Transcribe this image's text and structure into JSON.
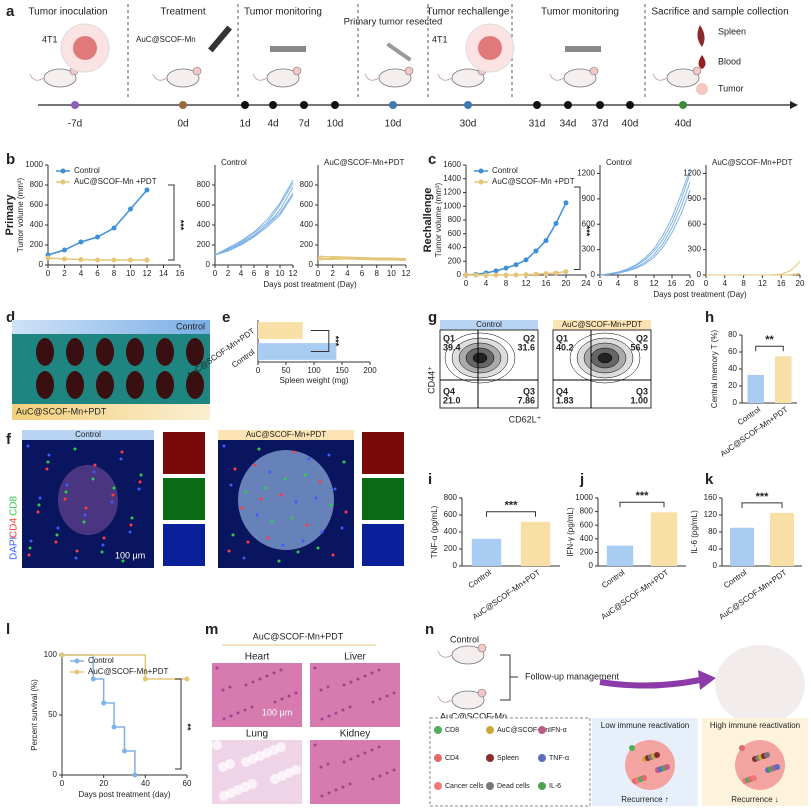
{
  "panel_letters": [
    "a",
    "b",
    "c",
    "d",
    "e",
    "f",
    "g",
    "h",
    "i",
    "j",
    "k",
    "l",
    "m",
    "n"
  ],
  "timeline": {
    "stages": [
      "Tumor inoculation",
      "Treatment",
      "Tumor monitoring",
      "Primary tumor resected",
      "Tumor rechallenge",
      "Tumor monitoring",
      "Sacrifice and sample collection"
    ],
    "notes": [
      "4T1",
      "AuC@SCOF-Mn",
      "4T1"
    ],
    "points": [
      {
        "label": "-7d",
        "color": "#8e5fb5"
      },
      {
        "label": "0d",
        "color": "#9a6a3a"
      },
      {
        "label": "1d",
        "color": "#111111"
      },
      {
        "label": "4d",
        "color": "#111111"
      },
      {
        "label": "7d",
        "color": "#111111"
      },
      {
        "label": "10d",
        "color": "#111111"
      },
      {
        "label": "10d",
        "color": "#3f78b5"
      },
      {
        "label": "30d",
        "color": "#3f78b5"
      },
      {
        "label": "31d",
        "color": "#111111"
      },
      {
        "label": "34d",
        "color": "#111111"
      },
      {
        "label": "37d",
        "color": "#111111"
      },
      {
        "label": "40d",
        "color": "#111111"
      },
      {
        "label": "40d",
        "color": "#3d8a3d"
      }
    ],
    "samples": [
      "Spleen",
      "Blood",
      "Tumor"
    ]
  },
  "spleen_photo": {
    "top": "Control",
    "bottom": "AuC@SCOF-Mn+PDT"
  },
  "if_images": {
    "panels": [
      "Control",
      "AuC@SCOF-Mn+PDT"
    ],
    "stains": [
      "DAPI",
      "CD4",
      "CD8"
    ],
    "scale": "100 μm"
  },
  "flow": {
    "panels": [
      {
        "title": "Control",
        "quadrants": [
          [
            "Q1",
            "39.4"
          ],
          [
            "Q2",
            "31.6"
          ],
          [
            "Q4",
            "21.0"
          ],
          [
            "Q3",
            "7.86"
          ]
        ]
      },
      {
        "title": "AuC@SCOF-Mn+PDT",
        "quadrants": [
          [
            "Q1",
            "40.2"
          ],
          [
            "Q2",
            "56.9"
          ],
          [
            "Q4",
            "1.83"
          ],
          [
            "Q3",
            "1.00"
          ]
        ]
      }
    ],
    "y_label": "CD44⁺",
    "x_label": "CD62L⁺"
  },
  "histology": {
    "title": "AuC@SCOF-Mn+PDT",
    "organs": [
      "Heart",
      "Liver",
      "Lung",
      "Kidney"
    ],
    "scale": "100 μm"
  },
  "schematic": {
    "groups": [
      "Control",
      "AuC@SCOF-Mn"
    ],
    "arrow": "Follow-up management",
    "outcomes": [
      {
        "title": "Low immune reactivation",
        "result": "Recurrence ↑"
      },
      {
        "title": "High immune reactivation",
        "result": "Recurrence ↓"
      }
    ],
    "legend": [
      "CD8",
      "AuC@SCOF-Mn",
      "IFN-α",
      "CD4",
      "Spleen",
      "TNF-α",
      "Cancer cells",
      "Dead cells",
      "IL-6"
    ]
  },
  "chart_data": [
    {
      "type": "line",
      "side_label": "Primary",
      "ylabel": "Tumor volume (mm³)",
      "x": [
        0,
        2,
        4,
        6,
        8,
        10,
        12
      ],
      "xlim": [
        0,
        16
      ],
      "xticks": [
        0,
        2,
        4,
        6,
        8,
        10,
        12,
        14,
        16
      ],
      "ylim": [
        0,
        1000
      ],
      "yticks": [
        0,
        200,
        400,
        600,
        800,
        1000
      ],
      "markers": true,
      "legend": true,
      "annotation": "***",
      "series": [
        {
          "name": "Control",
          "color": "#3f8fd6",
          "values": [
            100,
            150,
            230,
            280,
            370,
            560,
            750
          ]
        },
        {
          "name": "AuC@SCOF-Mn +PDT",
          "color": "#e5c679",
          "values": [
            70,
            60,
            55,
            50,
            50,
            50,
            50
          ]
        }
      ]
    },
    {
      "type": "line",
      "title": "Control",
      "xlabel": "Days post treatment (Day)",
      "x": [
        0,
        2,
        4,
        6,
        8,
        10,
        12
      ],
      "xlim": [
        0,
        12
      ],
      "xticks": [
        0,
        2,
        4,
        6,
        8,
        10,
        12
      ],
      "ylim": [
        0,
        1000
      ],
      "yticks": [
        0,
        200,
        400,
        600,
        800
      ],
      "series": [
        {
          "color": "#7fb2e5",
          "values": [
            100,
            160,
            220,
            300,
            400,
            550,
            780
          ]
        },
        {
          "color": "#7fb2e5",
          "values": [
            100,
            150,
            230,
            320,
            420,
            600,
            820
          ]
        },
        {
          "color": "#7fb2e5",
          "values": [
            100,
            140,
            200,
            280,
            380,
            500,
            700
          ]
        },
        {
          "color": "#7fb2e5",
          "values": [
            100,
            170,
            240,
            330,
            450,
            620,
            850
          ]
        },
        {
          "color": "#7fb2e5",
          "values": [
            100,
            150,
            210,
            290,
            400,
            520,
            720
          ]
        }
      ]
    },
    {
      "type": "line",
      "title": "AuC@SCOF-Mn+PDT",
      "x": [
        0,
        2,
        4,
        6,
        8,
        10,
        12
      ],
      "xlim": [
        0,
        12
      ],
      "xticks": [
        0,
        2,
        4,
        6,
        8,
        10,
        12
      ],
      "ylim": [
        0,
        1000
      ],
      "yticks": [
        0,
        200,
        400,
        600,
        800
      ],
      "series": [
        {
          "color": "#e5c679",
          "values": [
            60,
            70,
            75,
            70,
            65,
            60,
            55
          ]
        },
        {
          "color": "#e5c679",
          "values": [
            80,
            85,
            80,
            75,
            70,
            70,
            65
          ]
        },
        {
          "color": "#e5c679",
          "values": [
            50,
            55,
            60,
            55,
            50,
            50,
            45
          ]
        },
        {
          "color": "#e5c679",
          "values": [
            70,
            60,
            65,
            60,
            55,
            55,
            50
          ]
        },
        {
          "color": "#e5c679",
          "values": [
            90,
            80,
            70,
            65,
            60,
            60,
            60
          ]
        }
      ]
    },
    {
      "type": "line",
      "side_label": "Rechallenge",
      "ylabel": "Tumor volume (mm³)",
      "x": [
        0,
        2,
        4,
        6,
        8,
        10,
        12,
        14,
        16,
        18,
        20
      ],
      "xlim": [
        0,
        24
      ],
      "xticks": [
        0,
        4,
        8,
        12,
        16,
        20,
        24
      ],
      "ylim": [
        0,
        1600
      ],
      "yticks": [
        0,
        200,
        400,
        600,
        800,
        1000,
        1200,
        1400,
        1600
      ],
      "markers": true,
      "legend": true,
      "annotation": "***",
      "series": [
        {
          "name": "Control",
          "color": "#3f8fd6",
          "values": [
            0,
            10,
            30,
            60,
            100,
            150,
            220,
            350,
            500,
            750,
            1050
          ]
        },
        {
          "name": "AuC@SCOF-Mn +PDT",
          "color": "#e5c679",
          "values": [
            0,
            0,
            0,
            0,
            0,
            0,
            5,
            10,
            20,
            30,
            50
          ]
        }
      ]
    },
    {
      "type": "line",
      "title": "Control",
      "xlabel": "Days post treatment (Day)",
      "x": [
        0,
        2,
        4,
        6,
        8,
        10,
        12,
        14,
        16,
        18,
        20
      ],
      "xlim": [
        0,
        20
      ],
      "xticks": [
        0,
        4,
        8,
        12,
        16,
        20
      ],
      "ylim": [
        0,
        1300
      ],
      "yticks": [
        0,
        300,
        600,
        900,
        1200
      ],
      "series": [
        {
          "color": "#7fb2e5",
          "values": [
            0,
            10,
            30,
            60,
            110,
            180,
            280,
            420,
            620,
            880,
            1200
          ]
        },
        {
          "color": "#7fb2e5",
          "values": [
            0,
            10,
            25,
            50,
            90,
            150,
            240,
            370,
            560,
            800,
            1100
          ]
        },
        {
          "color": "#7fb2e5",
          "values": [
            0,
            15,
            35,
            70,
            120,
            200,
            310,
            470,
            680,
            950,
            1250
          ]
        },
        {
          "color": "#7fb2e5",
          "values": [
            0,
            8,
            20,
            45,
            80,
            130,
            210,
            330,
            500,
            720,
            1000
          ]
        }
      ]
    },
    {
      "type": "line",
      "title": "AuC@SCOF-Mn+PDT",
      "x": [
        0,
        2,
        4,
        6,
        8,
        10,
        12,
        14,
        16,
        18,
        20
      ],
      "xlim": [
        0,
        20
      ],
      "xticks": [
        0,
        4,
        8,
        12,
        16,
        20
      ],
      "ylim": [
        0,
        1300
      ],
      "yticks": [
        0,
        300,
        600,
        900,
        1200
      ],
      "series": [
        {
          "color": "#e5c679",
          "values": [
            0,
            0,
            0,
            0,
            0,
            0,
            0,
            0,
            10,
            50,
            160
          ]
        },
        {
          "color": "#e5c679",
          "values": [
            0,
            0,
            0,
            0,
            0,
            0,
            0,
            0,
            0,
            5,
            20
          ]
        },
        {
          "color": "#e5c679",
          "values": [
            0,
            0,
            0,
            0,
            0,
            0,
            0,
            0,
            0,
            0,
            10
          ]
        }
      ]
    },
    {
      "type": "hbar",
      "xlabel": "Spleen weight (mg)",
      "categories": [
        "AuC@SCOF-Mn+PDT",
        "Control"
      ],
      "values": [
        80,
        140
      ],
      "colors": [
        "#f8dfa6",
        "#a9cdf2"
      ],
      "xlim": [
        0,
        200
      ],
      "xticks": [
        0,
        50,
        100,
        150,
        200
      ],
      "annotation": "***"
    },
    {
      "type": "bar",
      "ylabel": "Central memory T (%)",
      "categories": [
        "Control",
        "AuC@SCOF-Mn+PDT"
      ],
      "values": [
        33,
        55
      ],
      "colors": [
        "#a9cdf2",
        "#f8dfa6"
      ],
      "ylim": [
        0,
        80
      ],
      "yticks": [
        0,
        20,
        40,
        60,
        80
      ],
      "annotation": "**"
    },
    {
      "type": "bar",
      "ylabel": "TNF-α (pg/mL)",
      "categories": [
        "Control",
        "AuC@SCOF-Mn+PDT"
      ],
      "values": [
        320,
        520
      ],
      "colors": [
        "#a9cdf2",
        "#f8dfa6"
      ],
      "ylim": [
        0,
        800
      ],
      "yticks": [
        0,
        200,
        400,
        600,
        800
      ],
      "annotation": "***"
    },
    {
      "type": "bar",
      "ylabel": "IFN-γ (pg/mL)",
      "categories": [
        "Control",
        "AuC@SCOF-Mn+PDT"
      ],
      "values": [
        300,
        790
      ],
      "colors": [
        "#a9cdf2",
        "#f8dfa6"
      ],
      "ylim": [
        0,
        1000
      ],
      "yticks": [
        0,
        200,
        400,
        600,
        800,
        1000
      ],
      "annotation": "***"
    },
    {
      "type": "bar",
      "ylabel": "IL-6 (pg/mL)",
      "categories": [
        "Control",
        "AuC@SCOF-Mn+PDT"
      ],
      "values": [
        90,
        125
      ],
      "colors": [
        "#a9cdf2",
        "#f8dfa6"
      ],
      "ylim": [
        0,
        160
      ],
      "yticks": [
        0,
        40,
        80,
        120,
        160
      ],
      "annotation": "***"
    },
    {
      "type": "line",
      "step": true,
      "markers": true,
      "legend": true,
      "ylabel": "Percent survival (%)",
      "xlabel": "Days post treatment (day)",
      "xlim": [
        0,
        60
      ],
      "xticks": [
        0,
        20,
        40,
        60
      ],
      "ylim": [
        0,
        100
      ],
      "yticks": [
        0,
        50,
        100
      ],
      "annotation": "**",
      "series": [
        {
          "name": "Control",
          "color": "#7fb2e5",
          "x": [
            0,
            15,
            20,
            25,
            30,
            35
          ],
          "values": [
            100,
            80,
            60,
            40,
            20,
            0
          ]
        },
        {
          "name": "AuC@SCOF-Mn+PDT",
          "color": "#e5c679",
          "x": [
            0,
            40,
            60
          ],
          "values": [
            100,
            80,
            80
          ]
        }
      ]
    }
  ]
}
